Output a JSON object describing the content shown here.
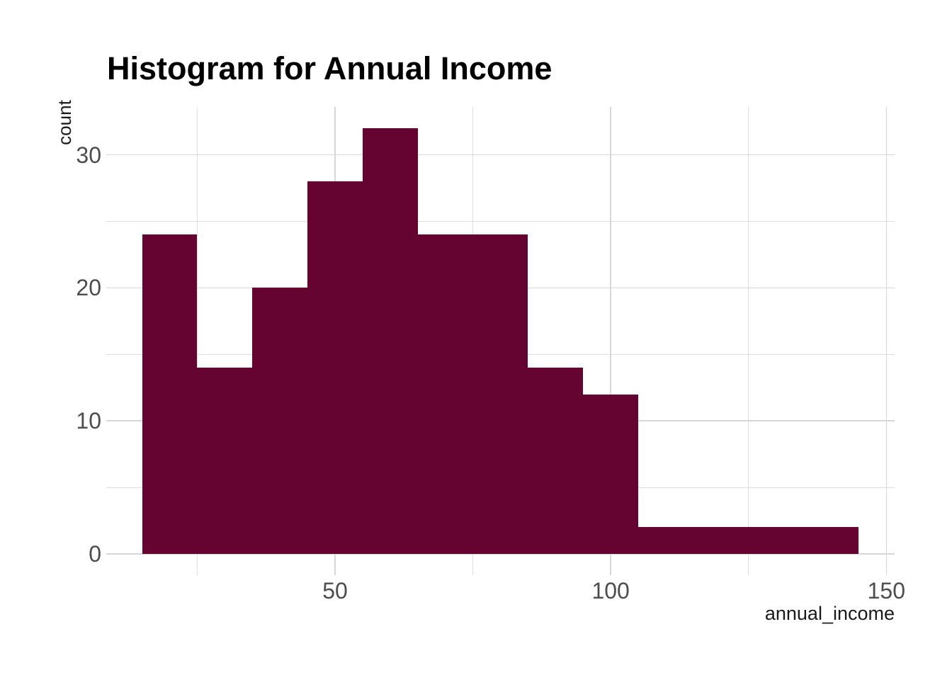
{
  "figure": {
    "background": "#FFFFFF"
  },
  "chart_data": {
    "type": "bar",
    "subtype": "histogram",
    "title": "Histogram for Annual Income",
    "xlabel": "annual_income",
    "ylabel": "count",
    "bin_edges": [
      15,
      25,
      35,
      45,
      55,
      65,
      75,
      85,
      95,
      105,
      115,
      125,
      135,
      145
    ],
    "counts": [
      24,
      14,
      20,
      28,
      32,
      24,
      24,
      14,
      12,
      2,
      2,
      2,
      2
    ],
    "x_ticks": [
      50,
      100,
      150
    ],
    "x_minor_gridlines": [
      25,
      75,
      125
    ],
    "y_ticks": [
      0,
      10,
      20,
      30
    ],
    "y_minor_gridlines": [
      5,
      15,
      25
    ],
    "xlim": [
      8.5,
      151.5
    ],
    "ylim": [
      -1.6,
      33.6
    ],
    "grid": "on",
    "legend_position": "none",
    "colors": {
      "bar_fill": "#650331",
      "grid_major": "#D7D7D7",
      "grid_minor": "#DEDEDE",
      "tick_label": "#4D4D4D",
      "axis_title": "#1A1A1A",
      "title": "#000000"
    }
  }
}
